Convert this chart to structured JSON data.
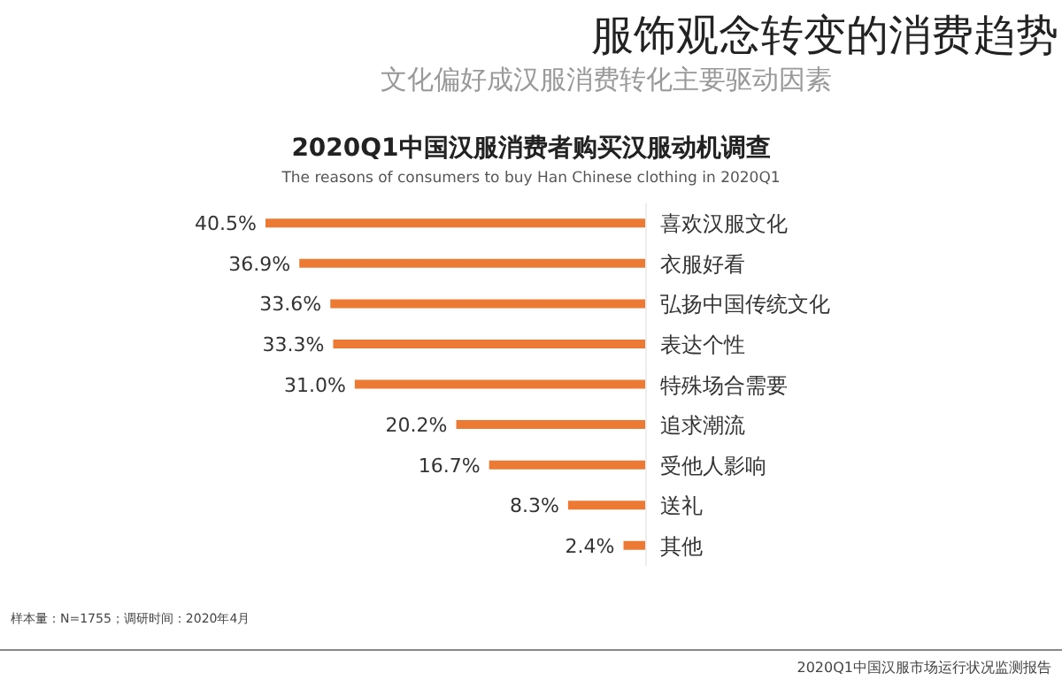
{
  "chart_data": {
    "type": "bar",
    "orientation": "horizontal",
    "title": "2020Q1中国汉服消费者购买汉服动机调查",
    "subtitle": "The reasons of consumers to buy Han Chinese clothing in 2020Q1",
    "annotations": [
      "服饰观念转变的消费趋势",
      "文化偏好成汉服消费转化主要驱动因素",
      "样本量：N=1755；调研时间：2020年4月",
      "2020Q1中国汉服市场运行状况监测报告"
    ],
    "categories": [
      "喜欢汉服文化",
      "衣服好看",
      "弘扬中国传统文化",
      "表达个性",
      "特殊场合需要",
      "追求潮流",
      "受他人影响",
      "送礼",
      "其他"
    ],
    "values": [
      40.5,
      36.9,
      33.6,
      33.3,
      31.0,
      20.2,
      16.7,
      8.3,
      2.4
    ],
    "value_labels": [
      "40.5%",
      "36.9%",
      "33.6%",
      "33.3%",
      "31.0%",
      "20.2%",
      "16.7%",
      "8.3%",
      "2.4%"
    ],
    "color": "#ec7a35",
    "grid": false,
    "legend": false
  }
}
